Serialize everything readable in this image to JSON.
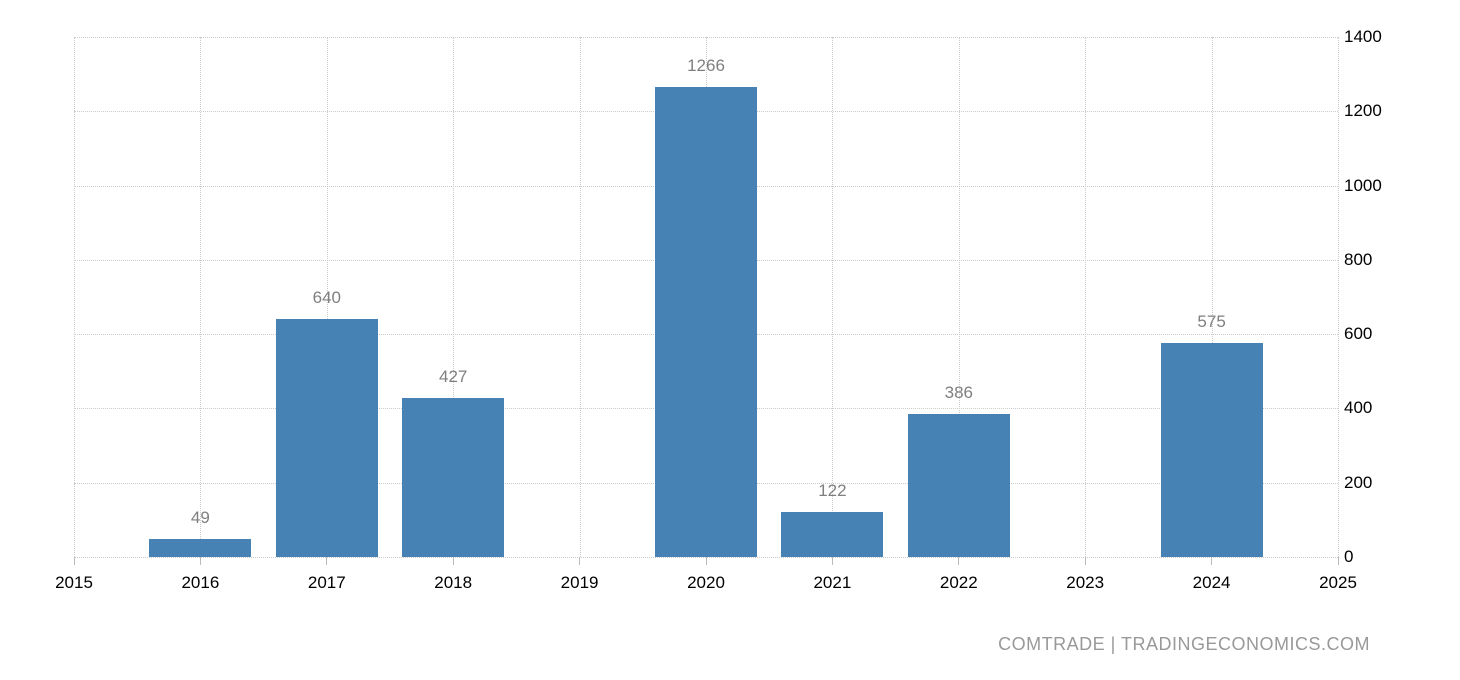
{
  "chart_data": {
    "type": "bar",
    "title": "",
    "xlabel": "",
    "ylabel": "",
    "x": [
      2016,
      2017,
      2018,
      2020,
      2021,
      2022,
      2024
    ],
    "values": [
      49,
      640,
      427,
      1266,
      122,
      386,
      575
    ],
    "value_labels": [
      "49",
      "640",
      "427",
      "1266",
      "122",
      "386",
      "575"
    ],
    "x_axis_ticks": [
      "2015",
      "2016",
      "2017",
      "2018",
      "2019",
      "2020",
      "2021",
      "2022",
      "2023",
      "2024",
      "2025"
    ],
    "y_axis_ticks": [
      "0",
      "200",
      "400",
      "600",
      "800",
      "1000",
      "1200",
      "1400"
    ],
    "xlim": [
      2015,
      2025
    ],
    "ylim": [
      0,
      1400
    ],
    "y_axis_side": "right",
    "grid": "dotted",
    "legend": "none",
    "colors": {
      "bar": "#4682b4",
      "grid": "#cccccc",
      "tick": "#bbbbbb",
      "axis_label": "#000000",
      "value_label": "#7f7f7f",
      "watermark": "#999999"
    }
  },
  "watermark": {
    "text": "COMTRADE | TRADINGECONOMICS.COM"
  }
}
